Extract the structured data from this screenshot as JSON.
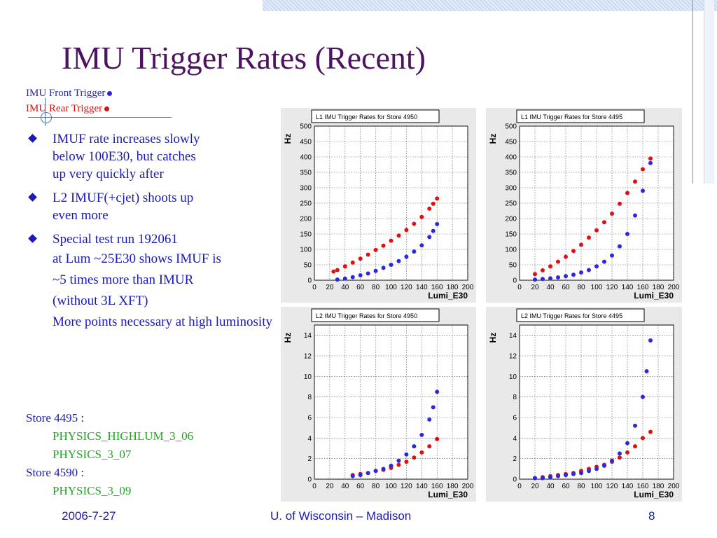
{
  "slide": {
    "title": "IMU Trigger Rates (Recent)",
    "legend": {
      "front": "IMU Front Trigger",
      "rear": "IMU Rear Trigger",
      "front_color": "#2a2adc",
      "rear_color": "#e01010"
    },
    "bullets": [
      {
        "lines": [
          "IMUF rate increases slowly",
          "below 100E30, but catches",
          "up very quickly after"
        ]
      },
      {
        "lines": [
          "L2 IMUF(+cjet) shoots up",
          "even more"
        ]
      },
      {
        "lines": [
          "Special test run 192061"
        ]
      }
    ],
    "subtext": [
      "at Lum ~25E30 shows IMUF is",
      "~5 times more than IMUR",
      "(without 3L XFT)",
      "More points necessary at high luminosity"
    ],
    "stores": {
      "s1_head": "Store 4495 :",
      "s1_items": [
        "PHYSICS_HIGHLUM_3_06",
        "PHYSICS_3_07"
      ],
      "s2_head": "Store 4590 :",
      "s2_items": [
        "PHYSICS_3_09"
      ]
    },
    "footer": {
      "date": "2006-7-27",
      "institution": "U. of Wisconsin – Madison",
      "page": "8"
    }
  },
  "chart_data": [
    {
      "type": "scatter",
      "title": "L1 IMU Trigger Rates for Store 4950",
      "xlabel": "Lumi_E30",
      "ylabel": "Hz",
      "xlim": [
        0,
        200
      ],
      "ylim": [
        0,
        500
      ],
      "xticks": [
        0,
        20,
        40,
        60,
        80,
        100,
        120,
        140,
        160,
        180,
        200
      ],
      "yticks": [
        0,
        50,
        100,
        150,
        200,
        250,
        300,
        350,
        400,
        450,
        500
      ],
      "grid": true,
      "series": [
        {
          "color": "#e01010",
          "x": [
            25,
            30,
            40,
            50,
            60,
            70,
            80,
            90,
            100,
            110,
            120,
            130,
            140,
            150,
            155,
            160
          ],
          "y": [
            28,
            33,
            45,
            57,
            70,
            83,
            98,
            112,
            128,
            145,
            163,
            183,
            205,
            232,
            248,
            265
          ]
        },
        {
          "color": "#2a2adc",
          "x": [
            30,
            40,
            50,
            60,
            70,
            80,
            90,
            100,
            110,
            120,
            130,
            140,
            150,
            155,
            160
          ],
          "y": [
            2,
            5,
            10,
            16,
            22,
            30,
            40,
            50,
            62,
            76,
            93,
            113,
            140,
            160,
            182
          ]
        }
      ]
    },
    {
      "type": "scatter",
      "title": "L1 IMU Trigger Rates for Store 4495",
      "xlabel": "Lumi_E30",
      "ylabel": "Hz",
      "xlim": [
        0,
        200
      ],
      "ylim": [
        0,
        500
      ],
      "xticks": [
        0,
        20,
        40,
        60,
        80,
        100,
        120,
        140,
        160,
        180,
        200
      ],
      "yticks": [
        0,
        50,
        100,
        150,
        200,
        250,
        300,
        350,
        400,
        450,
        500
      ],
      "grid": true,
      "series": [
        {
          "color": "#e01010",
          "x": [
            20,
            30,
            40,
            50,
            60,
            70,
            80,
            90,
            100,
            110,
            120,
            130,
            140,
            150,
            160,
            170
          ],
          "y": [
            20,
            32,
            45,
            60,
            76,
            95,
            115,
            138,
            162,
            188,
            216,
            248,
            283,
            320,
            360,
            395
          ]
        },
        {
          "color": "#2a2adc",
          "x": [
            20,
            30,
            40,
            50,
            60,
            70,
            80,
            90,
            100,
            110,
            120,
            130,
            140,
            150,
            160,
            170
          ],
          "y": [
            2,
            4,
            6,
            9,
            13,
            18,
            25,
            33,
            45,
            60,
            80,
            110,
            150,
            210,
            290,
            380
          ]
        }
      ]
    },
    {
      "type": "scatter",
      "title": "L2 IMU Trigger Rates for Store 4950",
      "xlabel": "Lumi_E30",
      "ylabel": "Hz",
      "xlim": [
        0,
        200
      ],
      "ylim": [
        0,
        15
      ],
      "xticks": [
        0,
        20,
        40,
        60,
        80,
        100,
        120,
        140,
        160,
        180,
        200
      ],
      "yticks": [
        0,
        2,
        4,
        6,
        8,
        10,
        12,
        14
      ],
      "grid": true,
      "series": [
        {
          "color": "#e01010",
          "x": [
            50,
            60,
            70,
            80,
            90,
            100,
            110,
            120,
            130,
            140,
            150,
            160
          ],
          "y": [
            0.4,
            0.5,
            0.6,
            0.8,
            0.9,
            1.1,
            1.4,
            1.7,
            2.1,
            2.6,
            3.2,
            3.9
          ]
        },
        {
          "color": "#2a2adc",
          "x": [
            50,
            60,
            70,
            80,
            90,
            100,
            110,
            120,
            130,
            140,
            150,
            155,
            160
          ],
          "y": [
            0.3,
            0.4,
            0.6,
            0.8,
            1.0,
            1.3,
            1.8,
            2.4,
            3.2,
            4.3,
            5.8,
            7.0,
            8.5
          ]
        }
      ]
    },
    {
      "type": "scatter",
      "title": "L2 IMU Trigger Rates for Store 4495",
      "xlabel": "Lumi_E30",
      "ylabel": "Hz",
      "xlim": [
        0,
        200
      ],
      "ylim": [
        0,
        15
      ],
      "xticks": [
        0,
        20,
        40,
        60,
        80,
        100,
        120,
        140,
        160,
        180,
        200
      ],
      "yticks": [
        0,
        2,
        4,
        6,
        8,
        10,
        12,
        14
      ],
      "grid": true,
      "series": [
        {
          "color": "#e01010",
          "x": [
            20,
            30,
            40,
            50,
            60,
            70,
            80,
            90,
            100,
            110,
            120,
            130,
            140,
            150,
            160,
            170
          ],
          "y": [
            0.1,
            0.2,
            0.3,
            0.4,
            0.5,
            0.6,
            0.8,
            1.0,
            1.2,
            1.4,
            1.7,
            2.1,
            2.6,
            3.2,
            4.0,
            4.6
          ]
        },
        {
          "color": "#2a2adc",
          "x": [
            20,
            30,
            40,
            50,
            60,
            70,
            80,
            90,
            100,
            110,
            120,
            130,
            140,
            150,
            160,
            165,
            170
          ],
          "y": [
            0.1,
            0.1,
            0.2,
            0.3,
            0.4,
            0.5,
            0.6,
            0.8,
            1.0,
            1.3,
            1.8,
            2.5,
            3.5,
            5.2,
            8.0,
            10.5,
            13.5
          ]
        }
      ]
    }
  ]
}
